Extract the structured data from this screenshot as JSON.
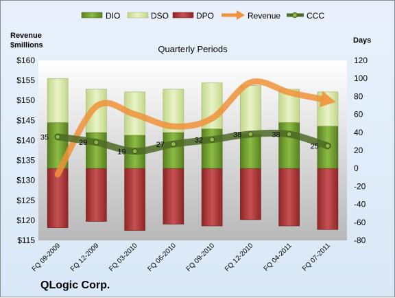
{
  "chart_data": {
    "type": "bar",
    "title": "Quarterly Periods",
    "company": "QLogic Corp.",
    "y_left_label_line1": "Revenue",
    "y_left_label_line2": "$millions",
    "y_right_label": "Days",
    "y_left_ticks": [
      "$160",
      "$155",
      "$150",
      "$145",
      "$140",
      "$135",
      "$130",
      "$125",
      "$120",
      "$115"
    ],
    "y_right_ticks": [
      "120",
      "100",
      "80",
      "60",
      "40",
      "20",
      "0",
      "-20",
      "-40",
      "-60",
      "-80"
    ],
    "ylim_left": [
      115,
      160
    ],
    "ylim_right": [
      -80,
      120
    ],
    "categories": [
      "FQ 09-2009",
      "FQ 12-2009",
      "FQ 03-2010",
      "FQ 06-2010",
      "FQ 09-2010",
      "FQ 12-2010",
      "FQ 04-2011",
      "FQ 07-2011"
    ],
    "legend": [
      "DIO",
      "DSO",
      "DPO",
      "Revenue",
      "CCC"
    ],
    "legend_position": "top",
    "series": [
      {
        "name": "DIO",
        "axis": "right",
        "values": [
          51,
          40,
          37,
          40,
          44,
          38,
          51,
          47
        ]
      },
      {
        "name": "DSO",
        "axis": "right",
        "values": [
          49,
          48,
          48,
          48,
          51,
          54,
          37,
          38
        ]
      },
      {
        "name": "DPO",
        "axis": "right",
        "values": [
          -66,
          -59,
          -69,
          -62,
          -64,
          -57,
          -64,
          -68
        ]
      },
      {
        "name": "Revenue",
        "axis": "left",
        "values": [
          131.5,
          148.5,
          146.5,
          143.5,
          145.5,
          154.5,
          152.0,
          150.0
        ]
      },
      {
        "name": "CCC",
        "axis": "right",
        "values": [
          35,
          29,
          19,
          27,
          32,
          38,
          38,
          25
        ]
      }
    ],
    "ccc_labels": [
      "35",
      "29",
      "19",
      "27",
      "32",
      "38",
      "38",
      "25"
    ],
    "colors": {
      "DIO": "#6f9a2c",
      "DSO": "#d6e6a8",
      "DPO": "#b5393a",
      "Revenue": "#f0923a",
      "CCC": "#4e6a24"
    },
    "grid": false
  }
}
